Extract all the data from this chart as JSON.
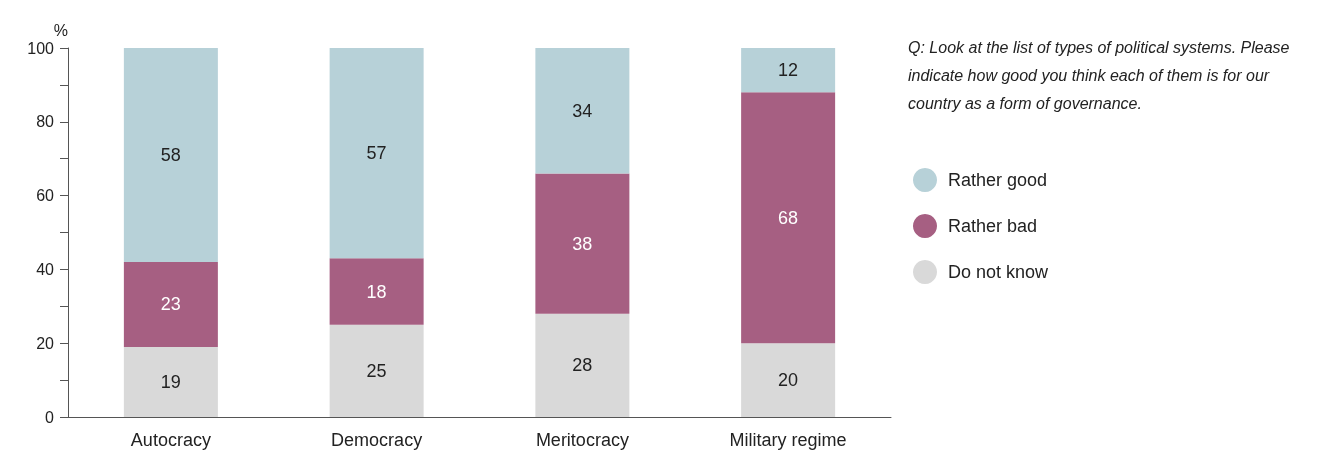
{
  "chart_data": {
    "type": "bar",
    "stacked": true,
    "ylabel": "%",
    "categories": [
      "Autocracy",
      "Democracy",
      "Meritocracy",
      "Military regime"
    ],
    "series": [
      {
        "name": "Do not know",
        "color": "#d9d9d9",
        "values": [
          19,
          25,
          28,
          20
        ]
      },
      {
        "name": "Rather bad",
        "color": "#a65f82",
        "values": [
          23,
          18,
          38,
          68
        ]
      },
      {
        "name": "Rather good",
        "color": "#b7d1d8",
        "values": [
          58,
          57,
          34,
          12
        ]
      }
    ],
    "ylim": [
      0,
      100
    ],
    "yticks": [
      0,
      20,
      40,
      60,
      80,
      100
    ],
    "grid": false,
    "legend": "right",
    "data_labels": true,
    "annotations": [
      "Q: Look at the list of types of political systems. Please indicate how good you think each of them is for our country as a form of governance."
    ]
  }
}
